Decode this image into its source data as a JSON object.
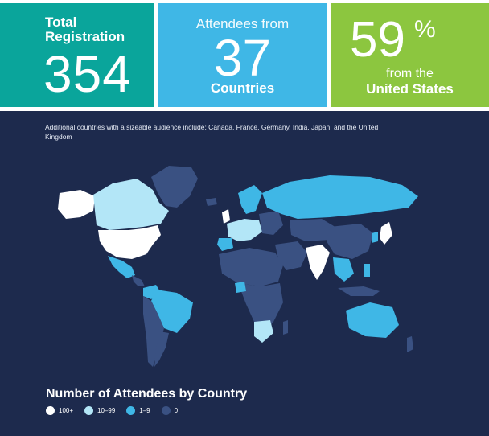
{
  "stats": {
    "total": {
      "label_line1": "Total",
      "label_line2": "Registration",
      "value": "354"
    },
    "attendees": {
      "top": "Attendees from",
      "value": "37",
      "bottom": "Countries"
    },
    "us": {
      "value": "59",
      "percent_sign": "%",
      "line1": "from the",
      "line2": "United States"
    }
  },
  "note": "Additional countries with a sizeable audience include: Canada, France, Germany, India, Japan, and the United Kingdom",
  "legend": {
    "title": "Number of Attendees by Country",
    "items": [
      {
        "label": "100+",
        "color": "#ffffff"
      },
      {
        "label": "10–99",
        "color": "#b3e6f7"
      },
      {
        "label": "1–9",
        "color": "#3fb7e6"
      },
      {
        "label": "0",
        "color": "#3a5182"
      }
    ]
  },
  "colors": {
    "total_box": "#0aa59b",
    "attendees_box": "#3fb7e6",
    "us_box": "#8cc63f",
    "map_background": "#1d2a4d"
  }
}
